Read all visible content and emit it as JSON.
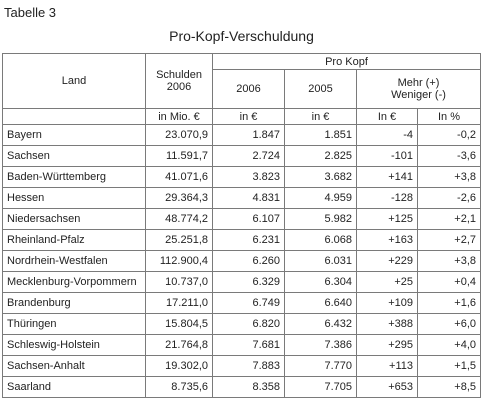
{
  "document": {
    "label": "Tabelle 3",
    "title": "Pro-Kopf-Verschuldung"
  },
  "table": {
    "headers": {
      "land": "Land",
      "schulden_line1": "Schulden",
      "schulden_line2": "2006",
      "pro_kopf": "Pro Kopf",
      "year_2006": "2006",
      "year_2005": "2005",
      "diff_line1": "Mehr (+)",
      "diff_line2": "Weniger (-)"
    },
    "units": [
      "in Mio. €",
      "in €",
      "in €",
      "In €",
      "In %"
    ],
    "rows": [
      {
        "land": "Bayern",
        "schulden": "23.070,9",
        "v2006": "1.847",
        "v2005": "1.851",
        "diff_eur": "-4",
        "diff_pct": "-0,2"
      },
      {
        "land": "Sachsen",
        "schulden": "11.591,7",
        "v2006": "2.724",
        "v2005": "2.825",
        "diff_eur": "-101",
        "diff_pct": "-3,6"
      },
      {
        "land": "Baden-Württemberg",
        "schulden": "41.071,6",
        "v2006": "3.823",
        "v2005": "3.682",
        "diff_eur": "+141",
        "diff_pct": "+3,8"
      },
      {
        "land": "Hessen",
        "schulden": "29.364,3",
        "v2006": "4.831",
        "v2005": "4.959",
        "diff_eur": "-128",
        "diff_pct": "-2,6"
      },
      {
        "land": "Niedersachsen",
        "schulden": "48.774,2",
        "v2006": "6.107",
        "v2005": "5.982",
        "diff_eur": "+125",
        "diff_pct": "+2,1"
      },
      {
        "land": "Rheinland-Pfalz",
        "schulden": "25.251,8",
        "v2006": "6.231",
        "v2005": "6.068",
        "diff_eur": "+163",
        "diff_pct": "+2,7"
      },
      {
        "land": "Nordrhein-Westfalen",
        "schulden": "112.900,4",
        "v2006": "6.260",
        "v2005": "6.031",
        "diff_eur": "+229",
        "diff_pct": "+3,8"
      },
      {
        "land": "Mecklenburg-Vorpommern",
        "schulden": "10.737,0",
        "v2006": "6.329",
        "v2005": "6.304",
        "diff_eur": "+25",
        "diff_pct": "+0,4"
      },
      {
        "land": "Brandenburg",
        "schulden": "17.211,0",
        "v2006": "6.749",
        "v2005": "6.640",
        "diff_eur": "+109",
        "diff_pct": "+1,6"
      },
      {
        "land": "Thüringen",
        "schulden": "15.804,5",
        "v2006": "6.820",
        "v2005": "6.432",
        "diff_eur": "+388",
        "diff_pct": "+6,0"
      },
      {
        "land": "Schleswig-Holstein",
        "schulden": "21.764,8",
        "v2006": "7.681",
        "v2005": "7.386",
        "diff_eur": "+295",
        "diff_pct": "+4,0"
      },
      {
        "land": "Sachsen-Anhalt",
        "schulden": "19.302,0",
        "v2006": "7.883",
        "v2005": "7.770",
        "diff_eur": "+113",
        "diff_pct": "+1,5"
      },
      {
        "land": "Saarland",
        "schulden": "8.735,6",
        "v2006": "8.358",
        "v2005": "7.705",
        "diff_eur": "+653",
        "diff_pct": "+8,5"
      }
    ]
  }
}
